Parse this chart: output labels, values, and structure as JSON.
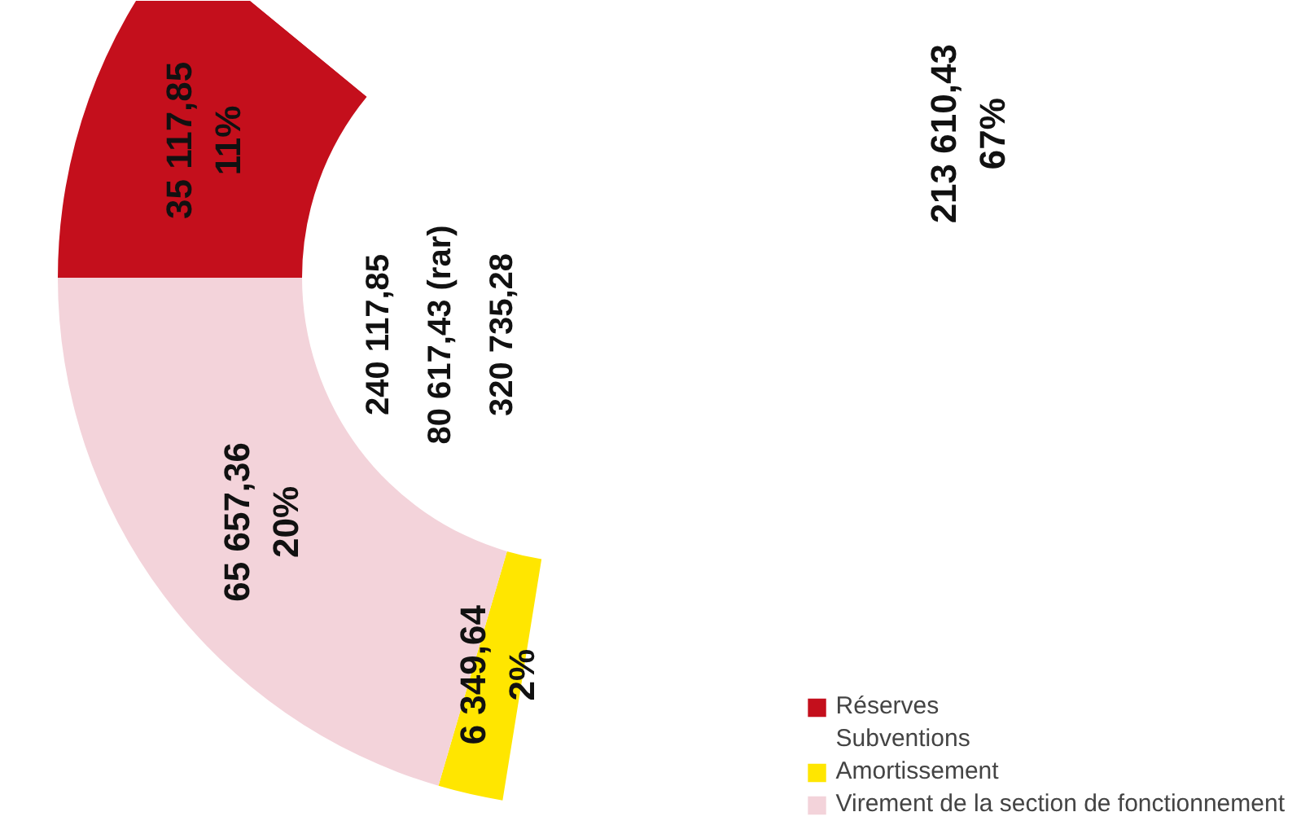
{
  "chart_data": {
    "type": "donut",
    "categories": [
      "Réserves",
      "Subventions",
      "Amortissement",
      "Virement de la section de fonctionnement"
    ],
    "values": [
      35117.85,
      213610.43,
      6349.64,
      65657.36
    ],
    "colors": [
      "#c40f1c",
      "#ffffff",
      "#ffe600",
      "#f3d3da"
    ],
    "value_labels": [
      "35 117,85\n11%",
      "213 610,43\n67%",
      "6 349,64\n2%",
      "65 657,36\n20%"
    ],
    "annotations": [
      "240 117,85",
      "80 617,43 (rar)",
      "320 735,28"
    ],
    "legend": "right"
  }
}
